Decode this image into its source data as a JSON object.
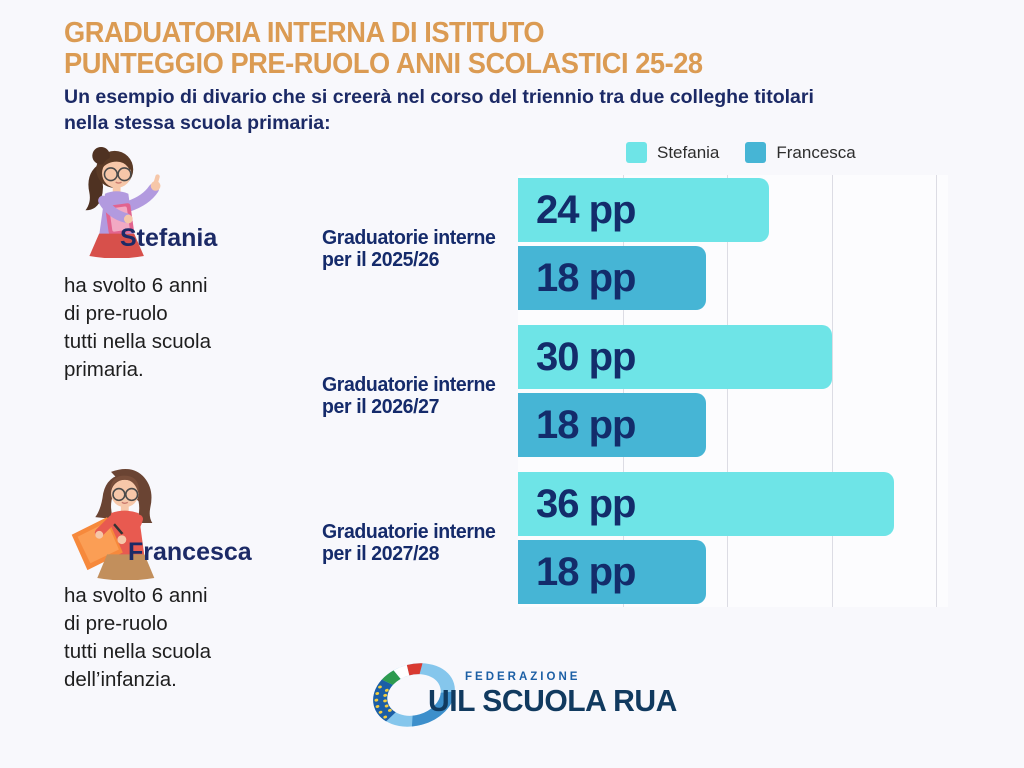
{
  "header": {
    "title_line1": "GRADUATORIA INTERNA DI ISTITUTO",
    "title_line2": "PUNTEGGIO PRE-RUOLO ANNI SCOLASTICI 25-28",
    "subtitle_line1": "Un esempio di divario che si creerà nel corso del triennio tra due colleghe titolari",
    "subtitle_line2": "nella stessa scuola primaria:"
  },
  "people": [
    {
      "name": "Stefania",
      "description_lines": [
        "ha svolto 6 anni",
        "di pre-ruolo",
        "tutti nella scuola",
        "primaria."
      ]
    },
    {
      "name": "Francesca",
      "description_lines": [
        "ha svolto 6 anni",
        "di pre-ruolo",
        "tutti nella scuola",
        "dell’infanzia."
      ]
    }
  ],
  "chart_data": {
    "type": "bar",
    "orientation": "horizontal",
    "unit": "pp",
    "categories": [
      "Graduatorie interne per il 2025/26",
      "Graduatorie interne per il 2026/27",
      "Graduatorie interne per il 2027/28"
    ],
    "category_display_lines": [
      [
        "Graduatorie interne",
        "per il 2025/26"
      ],
      [
        "Graduatorie interne",
        "per il 2026/27"
      ],
      [
        "Graduatorie interne",
        "per il 2027/28"
      ]
    ],
    "series": [
      {
        "name": "Stefania",
        "color": "#6EE4E7",
        "values": [
          24,
          30,
          36
        ],
        "value_labels": [
          "24 pp",
          "30 pp",
          "36 pp"
        ]
      },
      {
        "name": "Francesca",
        "color": "#46B5D5",
        "values": [
          18,
          18,
          18
        ],
        "value_labels": [
          "18 pp",
          "18 pp",
          "18 pp"
        ]
      }
    ],
    "xlim": [
      0,
      41
    ],
    "gridlines": [
      10,
      20,
      30,
      40
    ],
    "grid": "vertical",
    "legend_position": "top"
  },
  "footer": {
    "federation_label": "FEDERAZIONE",
    "org_name": "UIL SCUOLA RUA"
  },
  "colors": {
    "title_orange": "#DB9B53",
    "navy": "#1C2A66",
    "value_label_navy": "#132C6B",
    "series_stefania": "#6EE4E7",
    "series_francesca": "#46B5D5",
    "background": "#F8F8FC",
    "gridline": "#DCDCE4",
    "logo_blue": "#1C5FA5",
    "logo_navy": "#113A5F"
  }
}
